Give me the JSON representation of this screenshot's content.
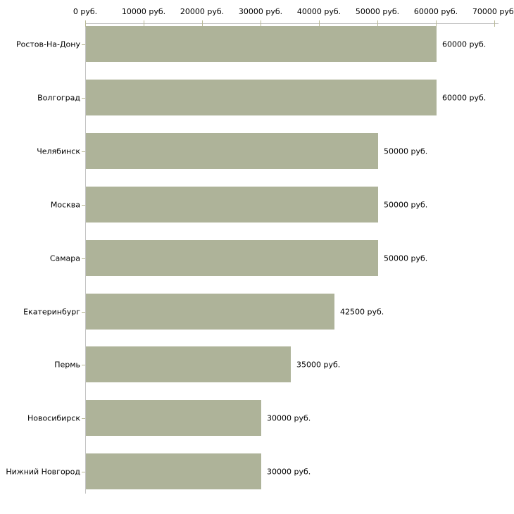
{
  "chart_data": {
    "type": "bar",
    "orientation": "horizontal",
    "title": "",
    "xlabel": "",
    "ylabel": "",
    "xlim": [
      0,
      70000
    ],
    "grid": false,
    "legend": null,
    "unit": "руб.",
    "categories": [
      "Ростов-На-Дону",
      "Волгоград",
      "Челябинск",
      "Москва",
      "Самара",
      "Екатеринбург",
      "Пермь",
      "Новосибирск",
      "Нижний Новгород"
    ],
    "values": [
      60000,
      60000,
      50000,
      50000,
      50000,
      42500,
      35000,
      30000,
      30000
    ],
    "value_labels": [
      "60000 руб.",
      "60000 руб.",
      "50000 руб.",
      "50000 руб.",
      "50000 руб.",
      "42500 руб.",
      "35000 руб.",
      "30000 руб.",
      "30000 руб."
    ],
    "x_ticks": [
      {
        "value": 0,
        "label": "0 руб."
      },
      {
        "value": 10000,
        "label": "10000 руб."
      },
      {
        "value": 20000,
        "label": "20000 руб."
      },
      {
        "value": 30000,
        "label": "30000 руб."
      },
      {
        "value": 40000,
        "label": "40000 руб."
      },
      {
        "value": 50000,
        "label": "50000 руб."
      },
      {
        "value": 60000,
        "label": "60000 руб."
      },
      {
        "value": 70000,
        "label": "70000 руб."
      }
    ],
    "colors": {
      "bar": "#aeb399",
      "axis": "#c2c2c2",
      "tick": "#b8b894",
      "text": "#000000",
      "background": "#ffffff"
    }
  }
}
